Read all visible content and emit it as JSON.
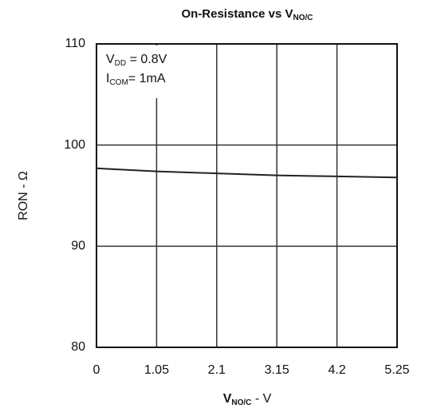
{
  "chart_data": {
    "type": "line",
    "title": {
      "main": "On-Resistance vs V",
      "sub": "NO/C"
    },
    "xlabel": {
      "main": "V",
      "sub": "NO/C",
      "suffix": " - V"
    },
    "ylabel": "RON - Ω",
    "annotations": [
      {
        "main": "V",
        "sub": "DD",
        "suffix": " = 0.8V"
      },
      {
        "main": "I",
        "sub": "COM",
        "suffix": "= 1mA"
      }
    ],
    "x": [
      0,
      1.05,
      2.1,
      3.15,
      4.2,
      5.25
    ],
    "series": [
      {
        "color": "#222222",
        "values": [
          97.7,
          97.4,
          97.2,
          97.0,
          96.9,
          96.8
        ]
      }
    ],
    "xlim": [
      0,
      5.25
    ],
    "xticks": [
      0,
      1.05,
      2.1,
      3.15,
      4.2,
      5.25
    ],
    "ylim": [
      80,
      110
    ],
    "yticks": [
      80,
      90,
      100,
      110
    ],
    "grid": true
  }
}
